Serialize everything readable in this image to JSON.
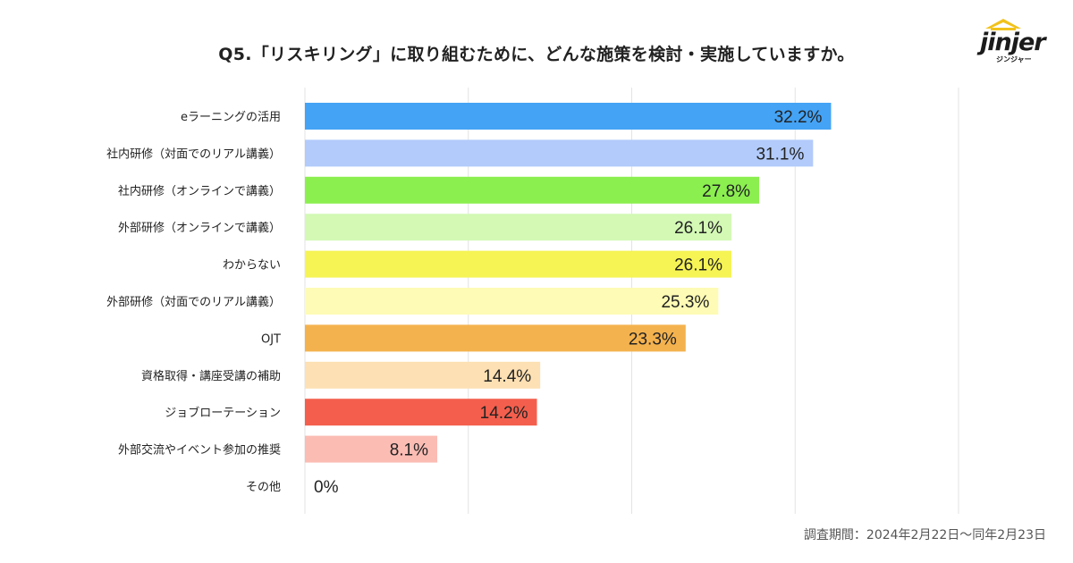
{
  "title": "Q5.「リスキリング」に取り組むために、どんな施策を検討・実施していますか。",
  "logo": {
    "word": "jinjer",
    "sub": "ジンジャー"
  },
  "footnote": "調査期間：2024年2月22日～同年2月23日",
  "chart_data": {
    "type": "bar",
    "orientation": "horizontal",
    "title": "Q5.「リスキリング」に取り組むために、どんな施策を検討・実施していますか。",
    "categories": [
      "eラーニングの活用",
      "社内研修（対面でのリアル講義）",
      "社内研修（オンラインで講義）",
      "外部研修（オンラインで講義）",
      "わからない",
      "外部研修（対面でのリアル講義）",
      "OJT",
      "資格取得・講座受講の補助",
      "ジョブローテーション",
      "外部交流やイベント参加の推奨",
      "その他"
    ],
    "values": [
      32.2,
      31.1,
      27.8,
      26.1,
      26.1,
      25.3,
      23.3,
      14.4,
      14.2,
      8.1,
      0
    ],
    "labels": [
      "32.2%",
      "31.1%",
      "27.8%",
      "26.1%",
      "26.1%",
      "25.3%",
      "23.3%",
      "14.4%",
      "14.2%",
      "8.1%",
      "0%"
    ],
    "colors": [
      "#44a3f5",
      "#b2cbfb",
      "#8bef50",
      "#d3f9b5",
      "#f5f454",
      "#fdfbb5",
      "#f4b24e",
      "#fde0b3",
      "#f45f4d",
      "#fbbcb4",
      "#ffffff"
    ],
    "xlim": [
      0,
      40
    ],
    "gridlines": [
      0,
      10,
      20,
      30,
      40
    ],
    "grid": true,
    "xlabel": "",
    "ylabel": ""
  }
}
